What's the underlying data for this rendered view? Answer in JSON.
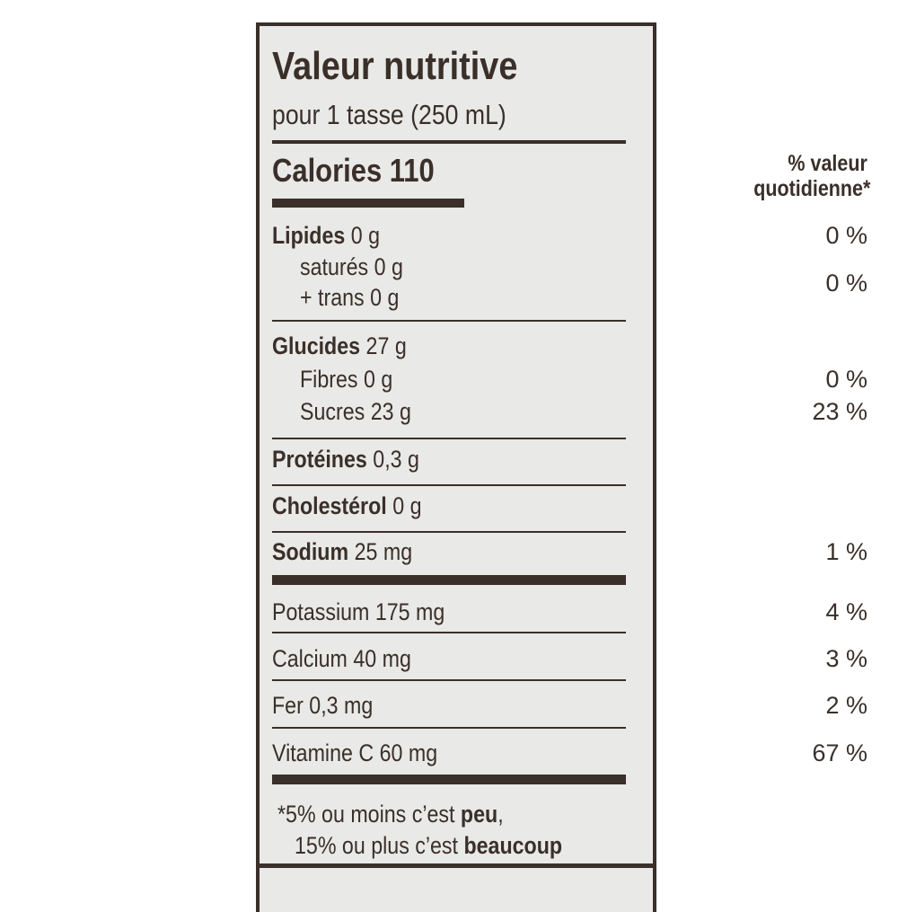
{
  "title": "Valeur nutritive",
  "serving": "pour 1 tasse (250 mL)",
  "calories_label": "Calories 110",
  "dv_header": [
    "% valeur",
    "quotidienne*"
  ],
  "rows": [
    {
      "name": "Lipides",
      "amount": "0 g",
      "dv": "0 %"
    },
    {
      "name": "saturés 0 g",
      "amount": "",
      "dv": "0 %"
    },
    {
      "name": "+ trans 0 g",
      "amount": "",
      "dv": ""
    },
    {
      "name": "Glucides",
      "amount": "27 g",
      "dv": ""
    },
    {
      "name": "Fibres 0 g",
      "amount": "",
      "dv": "0 %"
    },
    {
      "name": "Sucres 23 g",
      "amount": "",
      "dv": "23 %"
    },
    {
      "name": "Protéines",
      "amount": "0,3 g",
      "dv": ""
    },
    {
      "name": "Cholestérol",
      "amount": "0 g",
      "dv": ""
    },
    {
      "name": "Sodium",
      "amount": "25 mg",
      "dv": "1 %"
    },
    {
      "name": "Potassium 175 mg",
      "amount": "",
      "dv": "4 %"
    },
    {
      "name": "Calcium 40 mg",
      "amount": "",
      "dv": "3 %"
    },
    {
      "name": "Fer 0,3 mg",
      "amount": "",
      "dv": "2 %"
    },
    {
      "name": "Vitamine C 60 mg",
      "amount": "",
      "dv": "67 %"
    }
  ],
  "footnote": {
    "line1_pre": "*5% ou moins c’est ",
    "line1_bold": "peu",
    "line1_post": ",",
    "line2_pre": "15% ou plus c’est ",
    "line2_bold": "beaucoup"
  },
  "colors": {
    "ink": "#3a2f29",
    "label_bg": "#e9e9e7"
  }
}
